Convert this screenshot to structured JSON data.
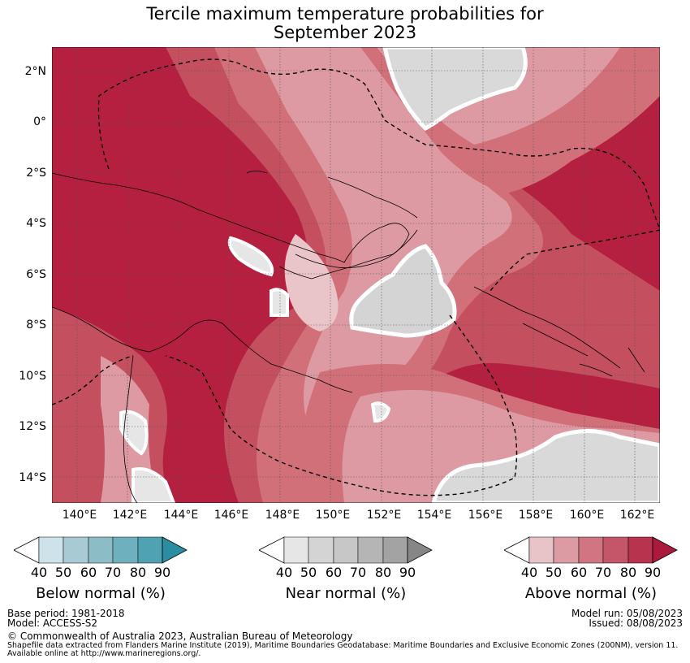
{
  "title": {
    "line1": "Tercile maximum temperature probabilities for",
    "line2": "September 2023"
  },
  "map": {
    "lat_ticks": [
      "2°N",
      "0°",
      "2°S",
      "4°S",
      "6°S",
      "8°S",
      "10°S",
      "12°S",
      "14°S"
    ],
    "lon_ticks": [
      "140°E",
      "142°E",
      "144°E",
      "146°E",
      "148°E",
      "150°E",
      "152°E",
      "154°E",
      "156°E",
      "158°E",
      "160°E",
      "162°E"
    ],
    "colors": {
      "ocean": "#b51f40",
      "a80": "#c4505f",
      "a70": "#d17079",
      "a60": "#de9aa2",
      "a50": "#e9c5c9",
      "near": "#d9d9d9",
      "near2": "#cfcfcf"
    }
  },
  "colorbars": [
    {
      "title": "Below normal (%)",
      "ticks": [
        "40",
        "50",
        "60",
        "70",
        "80",
        "90"
      ],
      "colors": [
        "#cde3e9",
        "#a8cad2",
        "#8cbcc6",
        "#6fb0bf",
        "#4ea2b2",
        "#2c8da1"
      ]
    },
    {
      "title": "Near normal (%)",
      "ticks": [
        "40",
        "50",
        "60",
        "70",
        "80",
        "90"
      ],
      "colors": [
        "#e6e6e6",
        "#d4d4d4",
        "#c7c7c7",
        "#b5b5b5",
        "#a3a3a3",
        "#868686"
      ]
    },
    {
      "title": "Above normal (%)",
      "ticks": [
        "40",
        "50",
        "60",
        "70",
        "80",
        "90"
      ],
      "colors": [
        "#e8c3c8",
        "#dc9aa3",
        "#d17582",
        "#c55568",
        "#b8334d",
        "#ab1a3c"
      ]
    }
  ],
  "footer": {
    "base_period": "Base period: 1981-2018",
    "model": "Model: ACCESS-S2",
    "model_run": "Model run: 05/08/2023",
    "issued": "Issued: 08/08/2023",
    "copyright": "© Commonwealth of Australia 2023, Australian Bureau of Meteorology",
    "shapefile1": "Shapefile data extracted from Flanders Marine Institute (2019), Maritime Boundaries Geodatabase: Maritime Boundaries and Exclusive Economic Zones (200NM), version 11.",
    "shapefile2": "Available online at http://www.marineregions.org/."
  }
}
